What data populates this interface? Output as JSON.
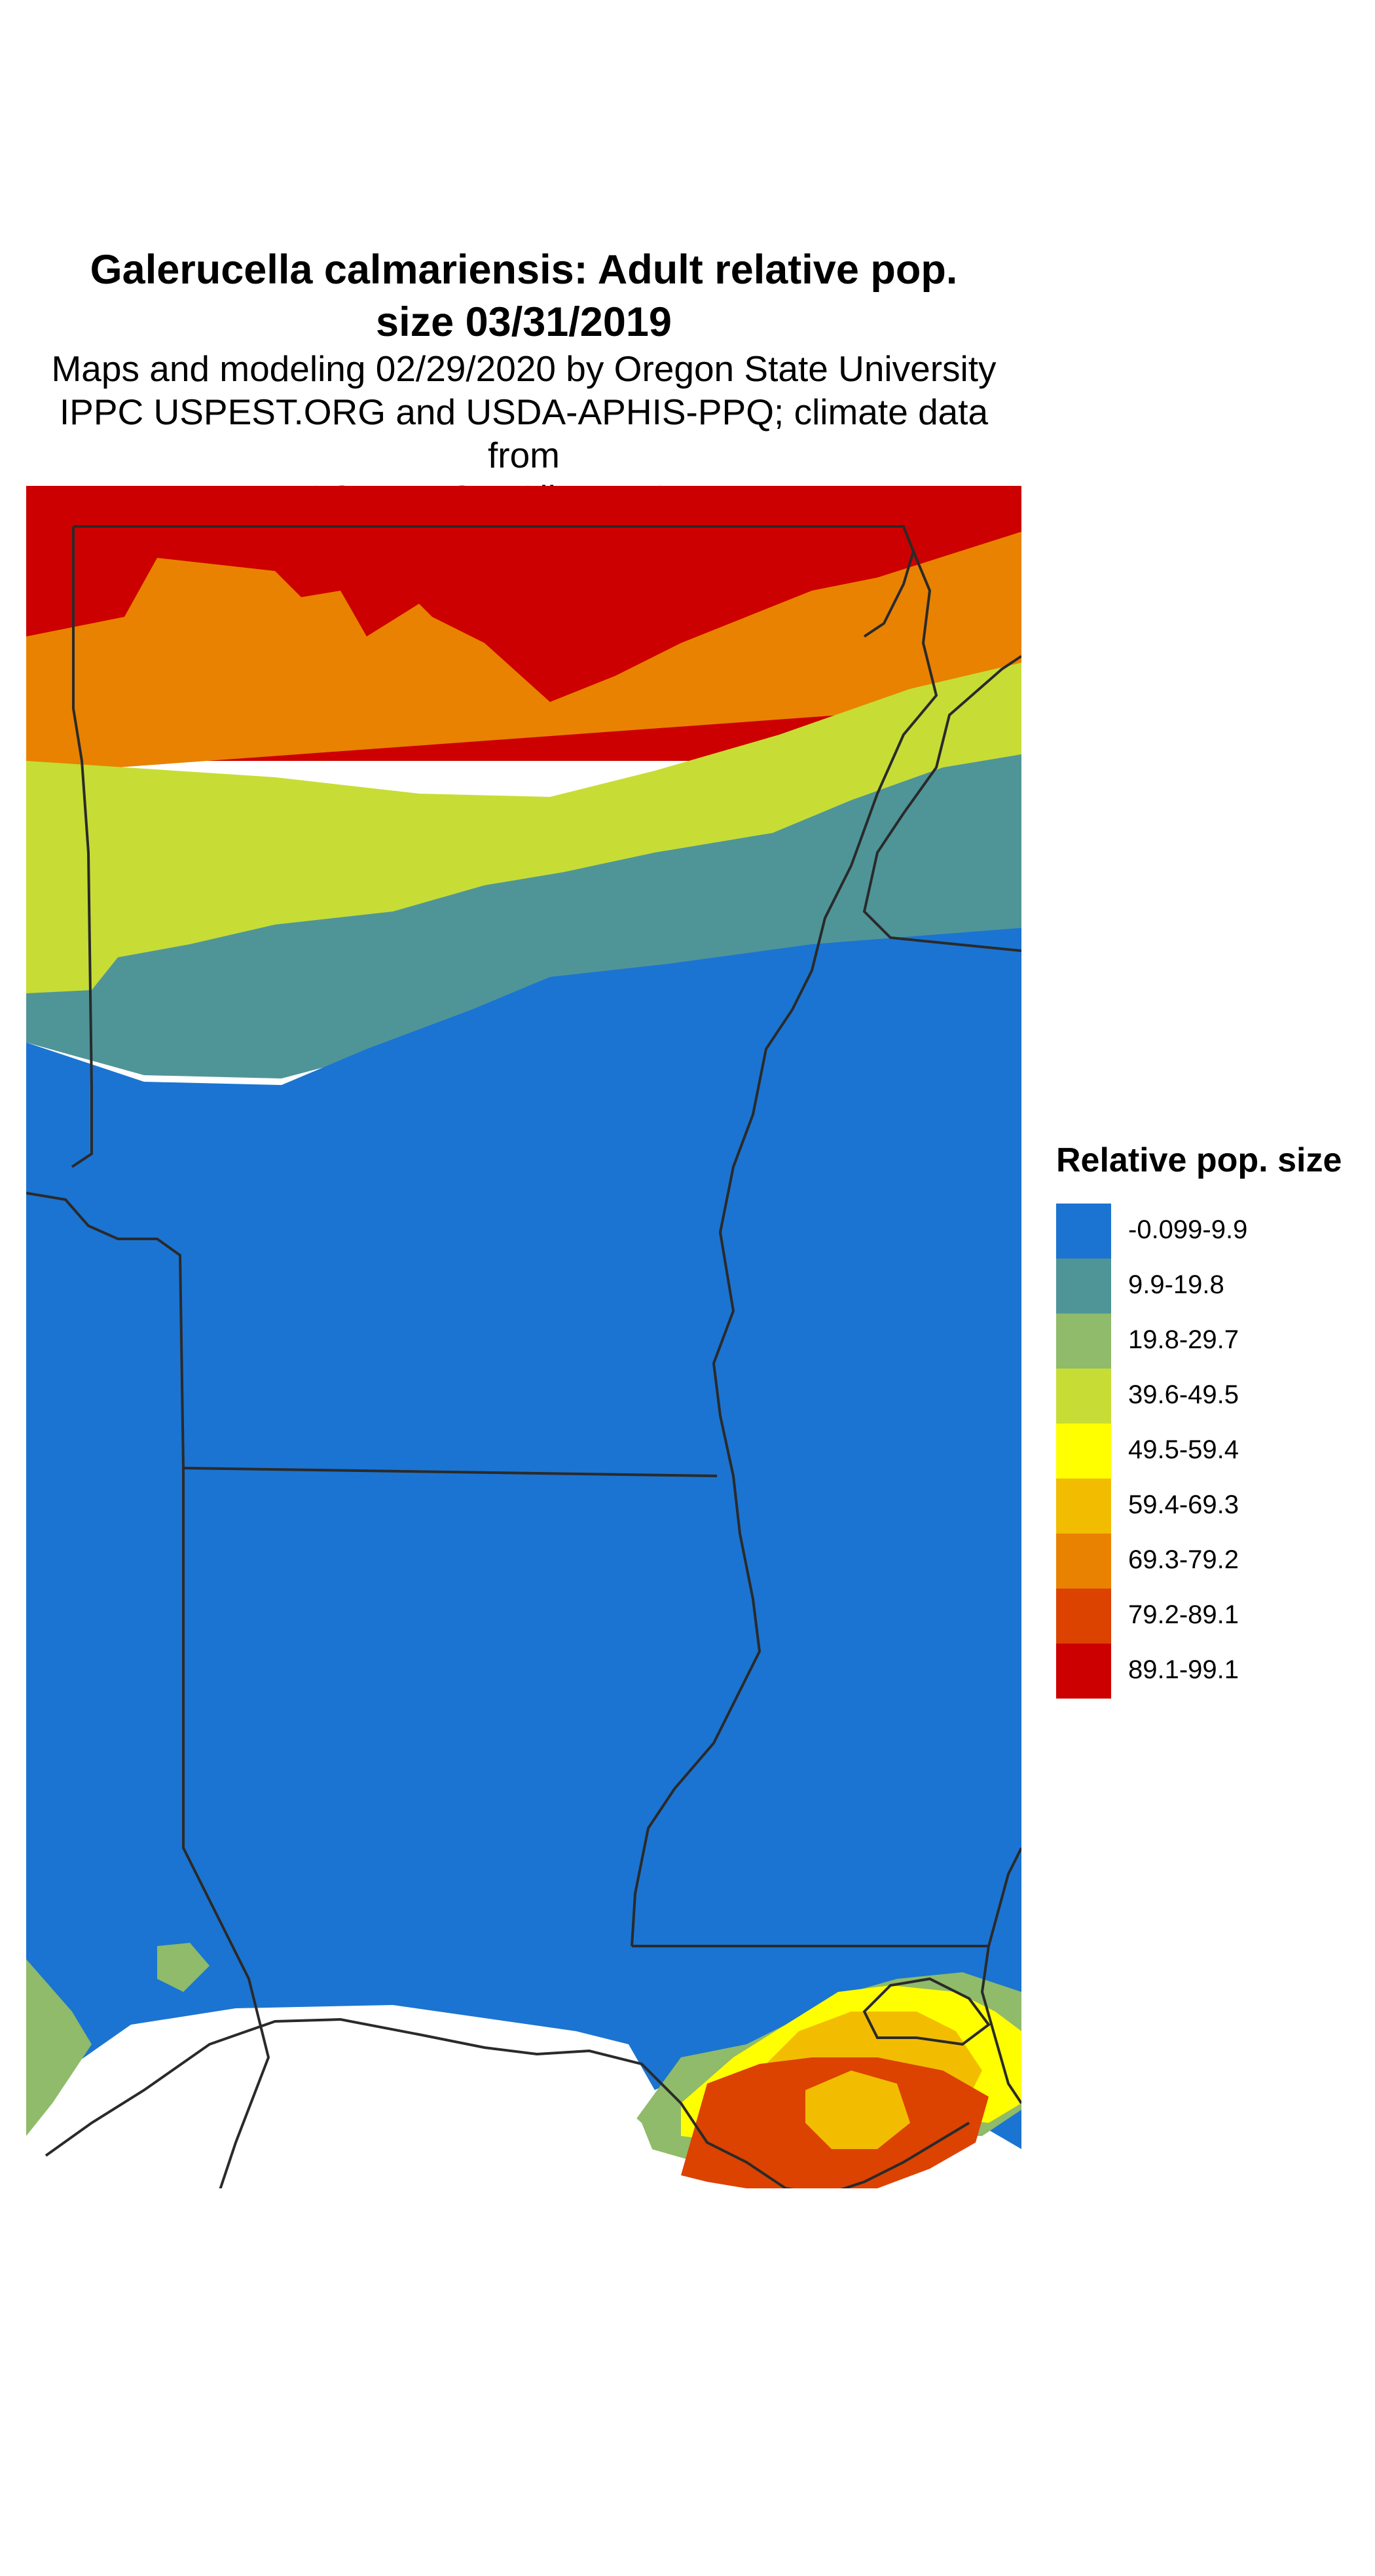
{
  "title": {
    "line1": "Galerucella calmariensis: Adult relative pop.",
    "line2": "size 03/31/2019"
  },
  "subtitle": {
    "line1": "Maps and modeling 02/29/2020 by Oregon State University",
    "line2": "IPPC USPEST.ORG and USDA-APHIS-PPQ; climate data from",
    "line3": "OSU PRISM Climate Group"
  },
  "legend": {
    "title": "Relative pop. size",
    "items": [
      {
        "label": "-0.099-9.9",
        "color": "#1b74d1"
      },
      {
        "label": "9.9-19.8",
        "color": "#4f9598"
      },
      {
        "label": "19.8-29.7",
        "color": "#8fbb6a"
      },
      {
        "label": "39.6-49.5",
        "color": "#c7dd35"
      },
      {
        "label": "49.5-59.4",
        "color": "#ffff00"
      },
      {
        "label": "59.4-69.3",
        "color": "#f2bd00"
      },
      {
        "label": "69.3-79.2",
        "color": "#e98200"
      },
      {
        "label": "79.2-89.1",
        "color": "#dc4200"
      },
      {
        "label": "89.1-99.1",
        "color": "#cc0000"
      }
    ]
  },
  "map": {
    "region": "Arkansas, Louisiana, Mississippi, southern Missouri",
    "colors": {
      "water": "#ffffff",
      "boundary": "#2a2a2a"
    }
  }
}
